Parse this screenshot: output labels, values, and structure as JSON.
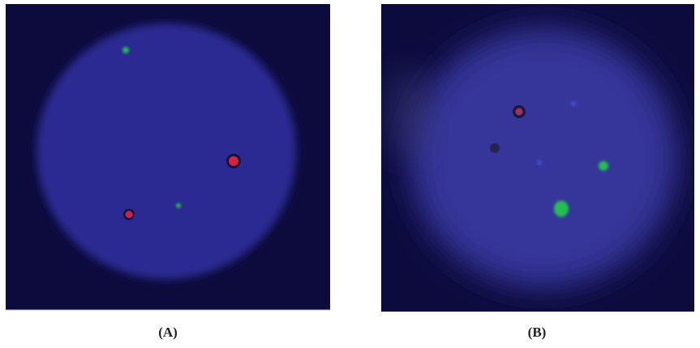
{
  "panels": [
    {
      "label": "(A)"
    },
    {
      "label": "(B)"
    }
  ]
}
